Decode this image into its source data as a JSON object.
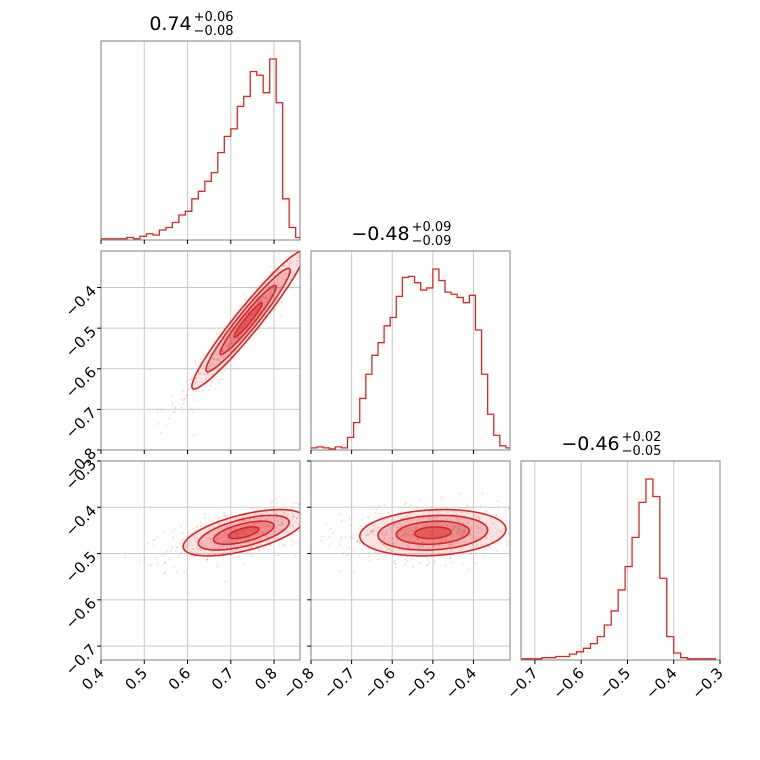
{
  "colors": {
    "accent": "#d62728",
    "grid": "#c8c8c8",
    "frame": "#808080",
    "fill_light": "#f8d4d6"
  },
  "chart_data": {
    "type": "corner",
    "parameters": [
      {
        "index": 0,
        "range": [
          0.4,
          0.86
        ],
        "ticks": [
          0.4,
          0.5,
          0.6,
          0.7,
          0.8
        ],
        "tick_labels": [
          "0.4",
          "0.5",
          "0.6",
          "0.7",
          "0.8"
        ],
        "title": {
          "median": "0.74",
          "plus": "+0.06",
          "minus": "−0.08"
        }
      },
      {
        "index": 1,
        "range": [
          -0.8,
          -0.31
        ],
        "ticks": [
          -0.8,
          -0.7,
          -0.6,
          -0.5,
          -0.4
        ],
        "tick_labels": [
          "−0.8",
          "−0.7",
          "−0.6",
          "−0.5",
          "−0.4"
        ],
        "title": {
          "median": "−0.48",
          "plus": "+0.09",
          "minus": "−0.09"
        }
      },
      {
        "index": 2,
        "range": [
          -0.73,
          -0.3
        ],
        "ticks": [
          -0.7,
          -0.6,
          -0.5,
          -0.4,
          -0.3
        ],
        "tick_labels": [
          "−0.7",
          "−0.6",
          "−0.5",
          "−0.4",
          "−0.3"
        ],
        "y_tick_labels": [
          "−0.7",
          "−0.6",
          "−0.5",
          "−0.4",
          "−0.3"
        ],
        "title": {
          "median": "−0.46",
          "plus": "+0.02",
          "minus": "−0.05"
        }
      }
    ],
    "histograms": [
      {
        "param": 0,
        "edges": [
          0.4,
          0.415,
          0.43,
          0.445,
          0.46,
          0.475,
          0.49,
          0.505,
          0.52,
          0.535,
          0.55,
          0.565,
          0.58,
          0.595,
          0.61,
          0.625,
          0.64,
          0.655,
          0.67,
          0.685,
          0.7,
          0.715,
          0.73,
          0.745,
          0.76,
          0.775,
          0.79,
          0.805,
          0.82,
          0.835,
          0.85,
          0.865
        ],
        "counts": [
          1,
          1,
          1,
          1,
          2,
          1,
          3,
          5,
          4,
          8,
          10,
          14,
          20,
          23,
          33,
          39,
          47,
          54,
          70,
          83,
          89,
          107,
          115,
          135,
          132,
          118,
          145,
          110,
          33,
          10,
          2
        ]
      },
      {
        "param": 1,
        "edges": [
          -0.8,
          -0.785,
          -0.77,
          -0.755,
          -0.74,
          -0.725,
          -0.71,
          -0.695,
          -0.68,
          -0.665,
          -0.65,
          -0.635,
          -0.62,
          -0.605,
          -0.59,
          -0.575,
          -0.56,
          -0.545,
          -0.53,
          -0.515,
          -0.5,
          -0.485,
          -0.47,
          -0.455,
          -0.44,
          -0.425,
          -0.41,
          -0.395,
          -0.38,
          -0.365,
          -0.35,
          -0.335,
          -0.32,
          -0.305
        ],
        "counts": [
          2,
          3,
          2,
          1,
          3,
          2,
          12,
          26,
          49,
          72,
          90,
          102,
          118,
          126,
          146,
          164,
          165,
          159,
          152,
          154,
          172,
          161,
          150,
          148,
          145,
          140,
          147,
          114,
          72,
          34,
          14,
          4,
          2
        ]
      },
      {
        "param": 2,
        "edges": [
          -0.73,
          -0.715,
          -0.7,
          -0.685,
          -0.67,
          -0.655,
          -0.64,
          -0.625,
          -0.61,
          -0.595,
          -0.58,
          -0.565,
          -0.55,
          -0.535,
          -0.52,
          -0.505,
          -0.49,
          -0.475,
          -0.46,
          -0.445,
          -0.43,
          -0.415,
          -0.4,
          -0.385,
          -0.37,
          -0.355,
          -0.34,
          -0.325,
          -0.31
        ],
        "counts": [
          1,
          1,
          1,
          2,
          2,
          3,
          3,
          5,
          7,
          10,
          14,
          20,
          30,
          42,
          60,
          80,
          105,
          135,
          155,
          140,
          70,
          20,
          6,
          2,
          1,
          1,
          1,
          1
        ]
      }
    ],
    "joint": [
      {
        "x_param": 0,
        "y_param": 1,
        "mean": [
          0.74,
          -0.48
        ],
        "sd": [
          0.065,
          0.085
        ],
        "rho": 0.96
      },
      {
        "x_param": 0,
        "y_param": 2,
        "mean": [
          0.73,
          -0.455
        ],
        "sd": [
          0.07,
          0.025
        ],
        "rho": 0.6
      },
      {
        "x_param": 1,
        "y_param": 2,
        "mean": [
          -0.5,
          -0.455
        ],
        "sd": [
          0.09,
          0.025
        ],
        "rho": 0.15
      }
    ],
    "grid": true
  }
}
